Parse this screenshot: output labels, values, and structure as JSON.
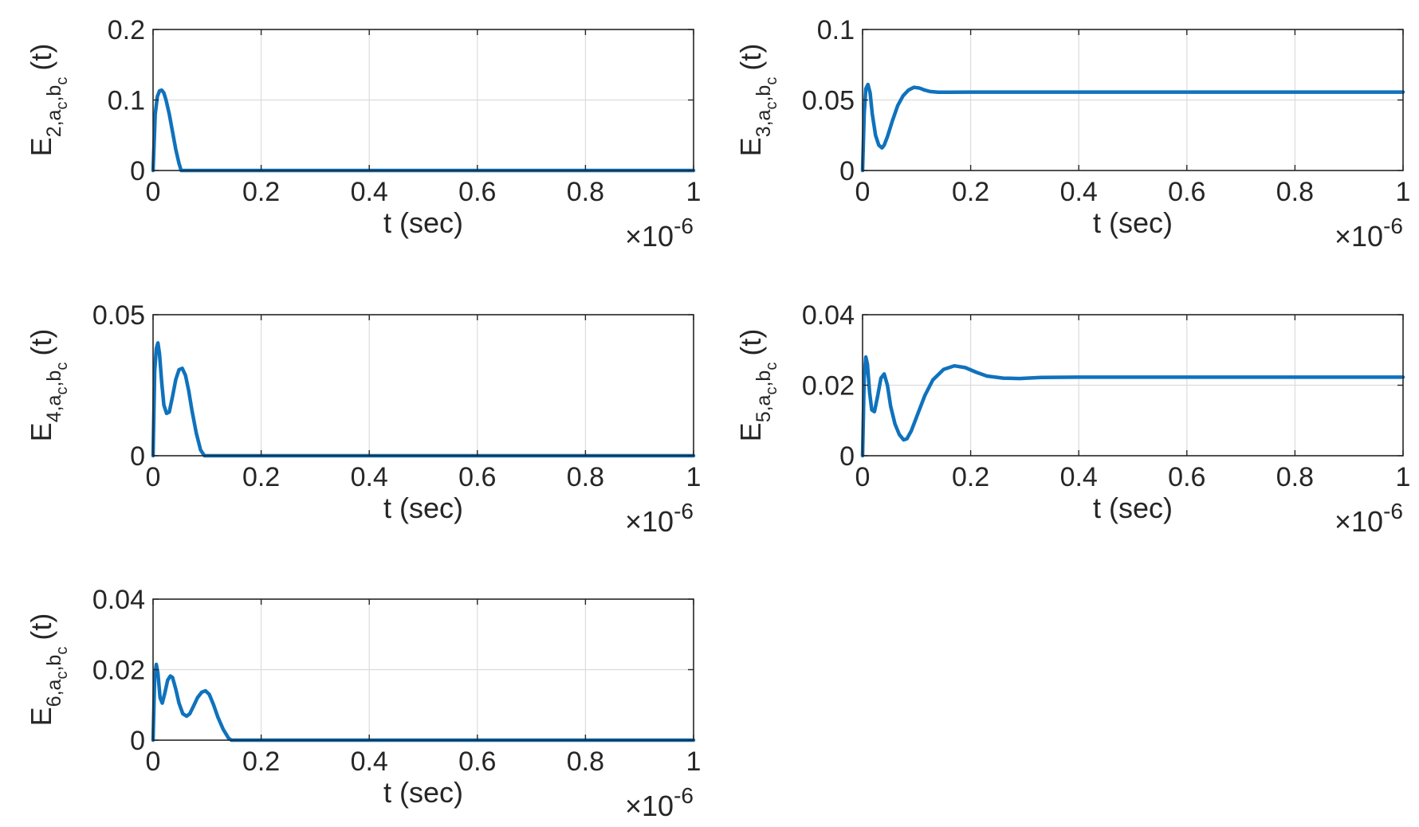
{
  "chart_data": [
    {
      "type": "line",
      "xlabel": "t (sec)",
      "x_exponent": "-6",
      "ylabel": {
        "main": "E",
        "sub": "2,a",
        "sub2": "c",
        "mid": ",b",
        "sub3": "c",
        "tail": "(t)"
      },
      "xlim": [
        0,
        1
      ],
      "ylim": [
        0,
        0.2
      ],
      "xticks": [
        "0",
        "0.2",
        "0.4",
        "0.6",
        "0.8",
        "1"
      ],
      "yticks": [
        "0",
        "0.1",
        "0.2"
      ],
      "grid": true,
      "series": [
        {
          "x": [
            0,
            0.004,
            0.008,
            0.012,
            0.016,
            0.02,
            0.024,
            0.03,
            0.036,
            0.042,
            0.048,
            0.052,
            0.06,
            0.2,
            0.4,
            0.6,
            0.8,
            1.0
          ],
          "values": [
            0,
            0.08,
            0.105,
            0.113,
            0.114,
            0.11,
            0.1,
            0.08,
            0.055,
            0.03,
            0.01,
            0,
            0,
            0,
            0,
            0,
            0,
            0
          ]
        }
      ]
    },
    {
      "type": "line",
      "xlabel": "t (sec)",
      "x_exponent": "-6",
      "ylabel": {
        "main": "E",
        "sub": "3,a",
        "sub2": "c",
        "mid": ",b",
        "sub3": "c",
        "tail": "(t)"
      },
      "xlim": [
        0,
        1
      ],
      "ylim": [
        0,
        0.1
      ],
      "xticks": [
        "0",
        "0.2",
        "0.4",
        "0.6",
        "0.8",
        "1"
      ],
      "yticks": [
        "0",
        "0.05",
        "0.1"
      ],
      "grid": true,
      "series": [
        {
          "x": [
            0,
            0.003,
            0.006,
            0.01,
            0.014,
            0.018,
            0.024,
            0.03,
            0.036,
            0.04,
            0.046,
            0.055,
            0.065,
            0.075,
            0.085,
            0.095,
            0.105,
            0.115,
            0.125,
            0.14,
            0.16,
            0.2,
            0.4,
            0.6,
            0.8,
            1.0
          ],
          "values": [
            0,
            0.04,
            0.058,
            0.061,
            0.055,
            0.04,
            0.025,
            0.018,
            0.016,
            0.018,
            0.024,
            0.035,
            0.046,
            0.053,
            0.057,
            0.059,
            0.0585,
            0.057,
            0.056,
            0.0555,
            0.0555,
            0.0556,
            0.0556,
            0.0556,
            0.0556,
            0.0556
          ]
        }
      ]
    },
    {
      "type": "line",
      "xlabel": "t (sec)",
      "x_exponent": "-6",
      "ylabel": {
        "main": "E",
        "sub": "4,a",
        "sub2": "c",
        "mid": ",b",
        "sub3": "c",
        "tail": "(t)"
      },
      "xlim": [
        0,
        1
      ],
      "ylim": [
        0,
        0.05
      ],
      "xticks": [
        "0",
        "0.2",
        "0.4",
        "0.6",
        "0.8",
        "1"
      ],
      "yticks": [
        "0",
        "0.05"
      ],
      "grid": true,
      "series": [
        {
          "x": [
            0,
            0.003,
            0.006,
            0.009,
            0.012,
            0.016,
            0.02,
            0.025,
            0.03,
            0.036,
            0.042,
            0.048,
            0.054,
            0.06,
            0.066,
            0.072,
            0.08,
            0.088,
            0.095,
            0.1,
            0.2,
            0.4,
            0.6,
            0.8,
            1.0
          ],
          "values": [
            0,
            0.03,
            0.038,
            0.04,
            0.036,
            0.026,
            0.018,
            0.015,
            0.0155,
            0.021,
            0.027,
            0.0305,
            0.031,
            0.0285,
            0.023,
            0.016,
            0.008,
            0.002,
            0,
            0,
            0,
            0,
            0,
            0,
            0
          ]
        }
      ]
    },
    {
      "type": "line",
      "xlabel": "t (sec)",
      "x_exponent": "-6",
      "ylabel": {
        "main": "E",
        "sub": "5,a",
        "sub2": "c",
        "mid": ",b",
        "sub3": "c",
        "tail": "(t)"
      },
      "xlim": [
        0,
        1
      ],
      "ylim": [
        0,
        0.04
      ],
      "xticks": [
        "0",
        "0.2",
        "0.4",
        "0.6",
        "0.8",
        "1"
      ],
      "yticks": [
        "0",
        "0.02",
        "0.04"
      ],
      "grid": true,
      "series": [
        {
          "x": [
            0,
            0.003,
            0.006,
            0.009,
            0.013,
            0.017,
            0.022,
            0.028,
            0.034,
            0.04,
            0.046,
            0.052,
            0.06,
            0.068,
            0.076,
            0.082,
            0.09,
            0.1,
            0.115,
            0.13,
            0.15,
            0.17,
            0.19,
            0.21,
            0.23,
            0.26,
            0.29,
            0.33,
            0.4,
            0.5,
            0.6,
            0.8,
            1.0
          ],
          "values": [
            0,
            0.022,
            0.028,
            0.026,
            0.018,
            0.013,
            0.0125,
            0.017,
            0.022,
            0.0232,
            0.02,
            0.014,
            0.009,
            0.006,
            0.0045,
            0.0048,
            0.007,
            0.011,
            0.017,
            0.0215,
            0.0245,
            0.0255,
            0.025,
            0.0237,
            0.0226,
            0.022,
            0.0219,
            0.0222,
            0.0223,
            0.0223,
            0.0223,
            0.0223,
            0.0223
          ]
        }
      ]
    },
    {
      "type": "line",
      "xlabel": "t (sec)",
      "x_exponent": "-6",
      "ylabel": {
        "main": "E",
        "sub": "6,a",
        "sub2": "c",
        "mid": ",b",
        "sub3": "c",
        "tail": "(t)"
      },
      "xlim": [
        0,
        1
      ],
      "ylim": [
        0,
        0.04
      ],
      "xticks": [
        "0",
        "0.2",
        "0.4",
        "0.6",
        "0.8",
        "1"
      ],
      "yticks": [
        "0",
        "0.02",
        "0.04"
      ],
      "grid": true,
      "series": [
        {
          "x": [
            0,
            0.003,
            0.006,
            0.009,
            0.013,
            0.017,
            0.022,
            0.027,
            0.032,
            0.036,
            0.042,
            0.048,
            0.055,
            0.062,
            0.068,
            0.075,
            0.082,
            0.09,
            0.097,
            0.104,
            0.112,
            0.12,
            0.13,
            0.14,
            0.145,
            0.2,
            0.4,
            0.6,
            0.8,
            1.0
          ],
          "values": [
            0,
            0.018,
            0.0215,
            0.019,
            0.012,
            0.0105,
            0.0135,
            0.017,
            0.0182,
            0.0178,
            0.0145,
            0.0105,
            0.0075,
            0.0068,
            0.0075,
            0.0097,
            0.012,
            0.0136,
            0.014,
            0.013,
            0.01,
            0.0065,
            0.003,
            0.0005,
            0,
            0,
            0,
            0,
            0,
            0
          ]
        }
      ]
    }
  ]
}
